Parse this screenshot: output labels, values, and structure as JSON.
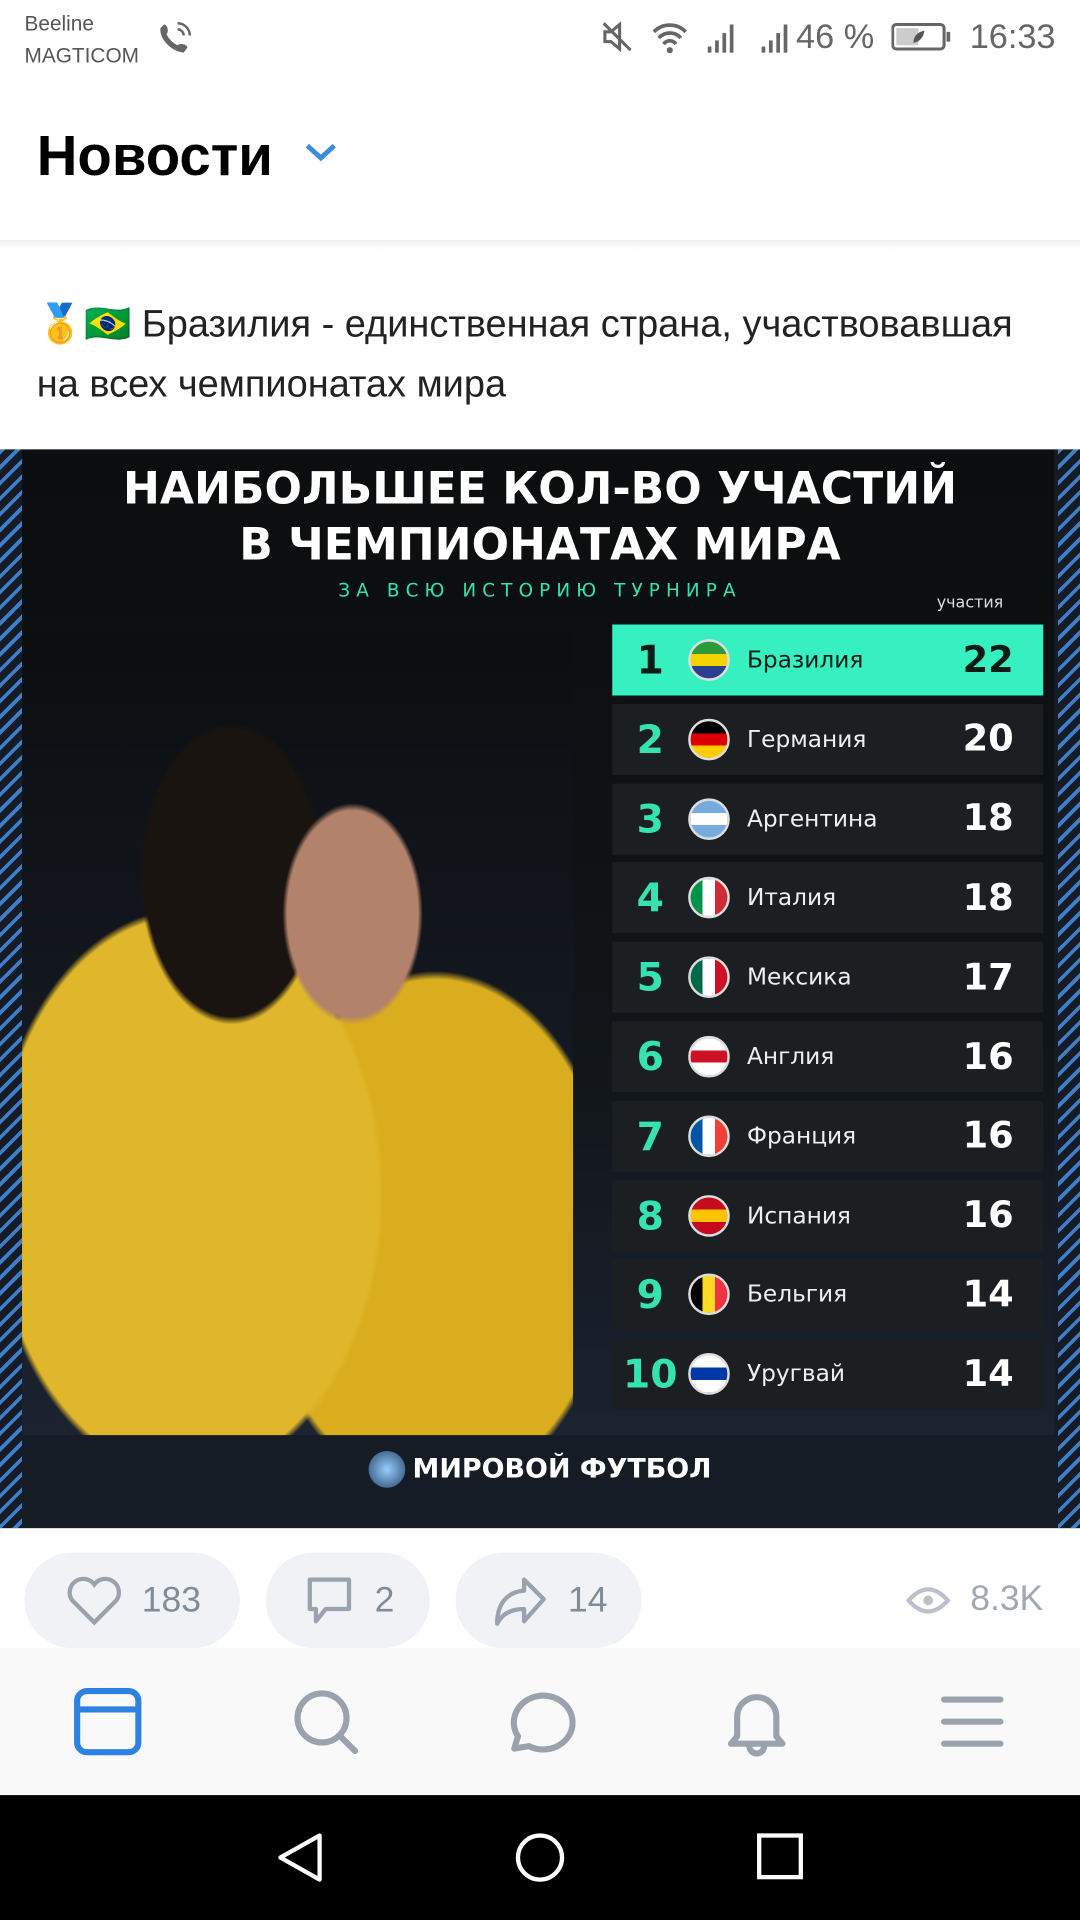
{
  "status_bar": {
    "carrier_1": "Beeline",
    "carrier_2": "MAGTICOM",
    "battery": "46 %",
    "time": "16:33",
    "icons": [
      "call-wifi-icon",
      "mute-icon",
      "wifi-icon",
      "signal-icon",
      "signal-icon",
      "battery-icon"
    ]
  },
  "header": {
    "title": "Новости",
    "dropdown_icon": "chevron-down-icon",
    "accent": "#3f8ae0"
  },
  "post": {
    "text": "🥇🇧🇷 Бразилия - единственная страна, участвовавшая на всех чемпионатах мира",
    "image": {
      "title_line1": "НАИБОЛЬШЕЕ КОЛ-ВО УЧАСТИЙ",
      "title_line2": "В ЧЕМПИОНАТАХ МИРА",
      "subtitle": "ЗА ВСЮ ИСТОРИЮ ТУРНИРА",
      "column_header": "участия",
      "rows": [
        {
          "rank": "1",
          "country": "Бразилия",
          "value": "22",
          "flag": [
            "#2a9a3a",
            "#f5d300",
            "#2a3f8f"
          ]
        },
        {
          "rank": "2",
          "country": "Германия",
          "value": "20",
          "flag": [
            "#000",
            "#d00",
            "#fc0"
          ]
        },
        {
          "rank": "3",
          "country": "Аргентина",
          "value": "18",
          "flag": [
            "#74acdf",
            "#fff",
            "#74acdf"
          ]
        },
        {
          "rank": "4",
          "country": "Италия",
          "value": "18",
          "flag": [
            "#009246",
            "#fff",
            "#ce2b37"
          ]
        },
        {
          "rank": "5",
          "country": "Мексика",
          "value": "17",
          "flag": [
            "#006847",
            "#fff",
            "#ce1126"
          ]
        },
        {
          "rank": "6",
          "country": "Англия",
          "value": "16",
          "flag": [
            "#fff",
            "#ce1124",
            "#fff"
          ]
        },
        {
          "rank": "7",
          "country": "Франция",
          "value": "16",
          "flag": [
            "#0055a4",
            "#fff",
            "#ef4135"
          ]
        },
        {
          "rank": "8",
          "country": "Испания",
          "value": "16",
          "flag": [
            "#c60b1e",
            "#ffc400",
            "#c60b1e"
          ]
        },
        {
          "rank": "9",
          "country": "Бельгия",
          "value": "14",
          "flag": [
            "#000",
            "#fdda24",
            "#ef3340"
          ]
        },
        {
          "rank": "10",
          "country": "Уругвай",
          "value": "14",
          "flag": [
            "#fff",
            "#0038a8",
            "#fff"
          ]
        }
      ],
      "footer_logo": "МИРОВОЙ ФУТБОЛ",
      "highlight_color": "#36f0c0"
    },
    "likes": "183",
    "comments": "2",
    "shares": "14",
    "views": "8.3K"
  },
  "bottom_nav": [
    {
      "name": "feed",
      "icon": "feed-icon",
      "active": true
    },
    {
      "name": "search",
      "icon": "search-icon"
    },
    {
      "name": "messages",
      "icon": "message-icon"
    },
    {
      "name": "notifications",
      "icon": "bell-icon"
    },
    {
      "name": "menu",
      "icon": "menu-icon"
    }
  ]
}
